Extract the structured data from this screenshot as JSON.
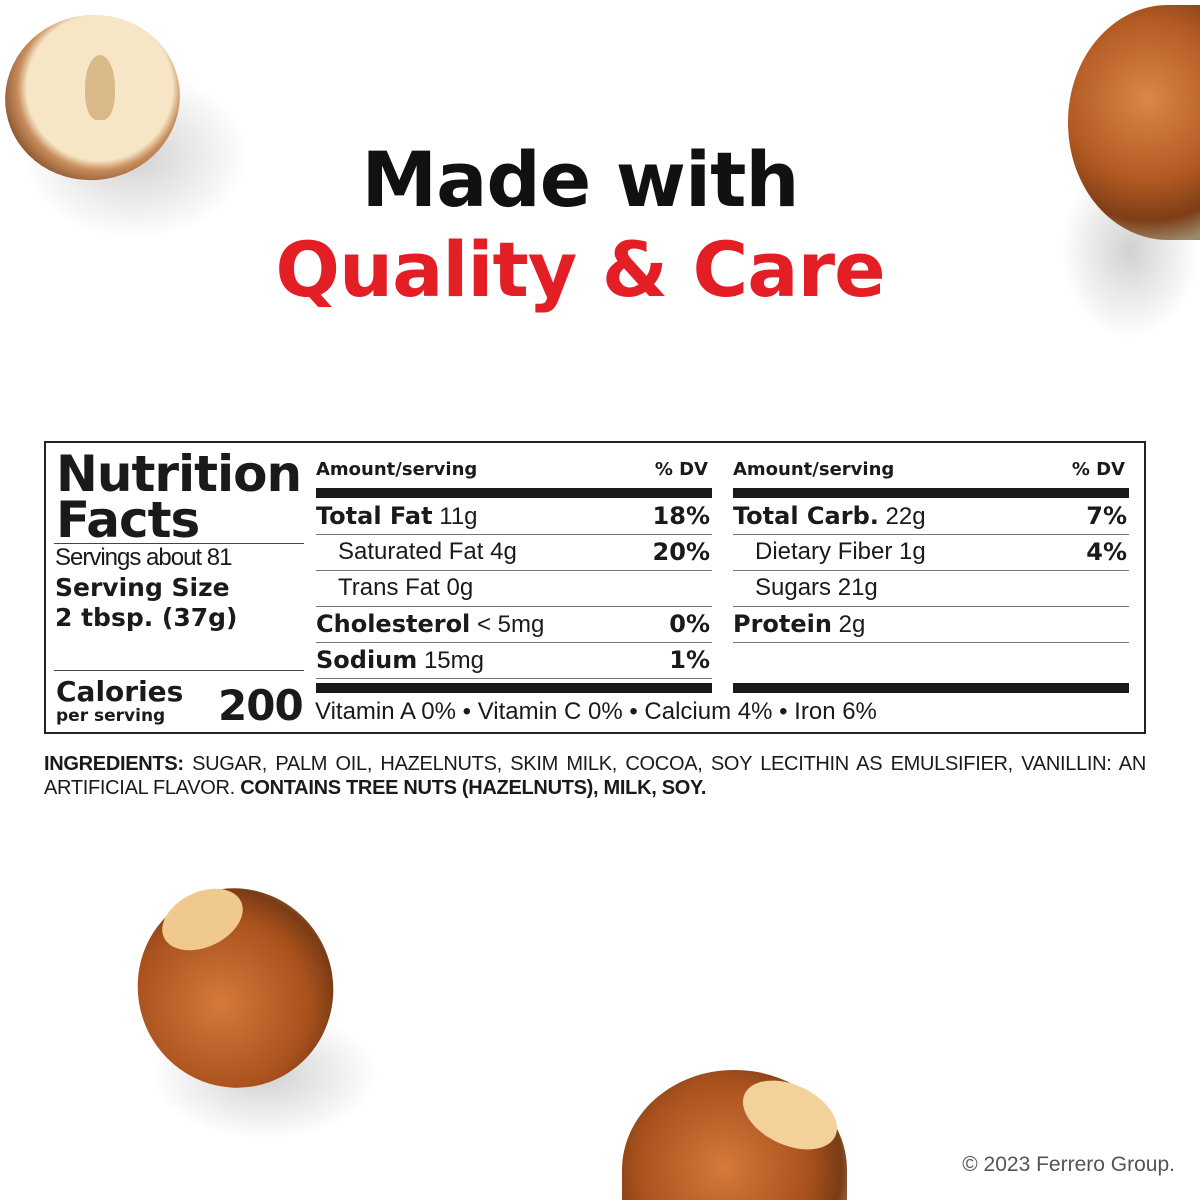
{
  "headline": {
    "line1": "Made with",
    "line2": "Quality & Care",
    "accent_color": "#e31e24"
  },
  "nutrition": {
    "title_line1": "Nutrition",
    "title_line2": "Facts",
    "servings": "Servings about 81",
    "serving_size_label": "Serving Size",
    "serving_size": "2 tbsp. (37g)",
    "calories_label": "Calories",
    "calories_sub": "per serving",
    "calories": "200",
    "col_header_amount": "Amount/serving",
    "col_header_dv": "% DV",
    "left_rows": [
      {
        "name": "Total Fat",
        "amount": "11g",
        "dv": "18%",
        "bold": true
      },
      {
        "name": "Saturated Fat",
        "amount": "4g",
        "dv": "20%",
        "bold": false
      },
      {
        "name": "Trans Fat",
        "amount": "0g",
        "dv": "",
        "bold": false
      },
      {
        "name": "Cholesterol",
        "amount": "< 5mg",
        "dv": "0%",
        "bold": true
      },
      {
        "name": "Sodium",
        "amount": "15mg",
        "dv": "1%",
        "bold": true
      }
    ],
    "right_rows": [
      {
        "name": "Total Carb.",
        "amount": "22g",
        "dv": "7%",
        "bold": true
      },
      {
        "name": "Dietary Fiber",
        "amount": "1g",
        "dv": "4%",
        "bold": false
      },
      {
        "name": "Sugars",
        "amount": "21g",
        "dv": "",
        "bold": false
      },
      {
        "name": "Protein",
        "amount": "2g",
        "dv": "",
        "bold": true
      }
    ],
    "vitamins": "Vitamin A 0% • Vitamin C  0% • Calcium  4% • Iron  6%"
  },
  "ingredients": {
    "label": "INGREDIENTS:",
    "text": " SUGAR, PALM OIL, HAZELNUTS, SKIM MILK, COCOA, SOY LECITHIN AS EMULSIFIER, VANILLIN: AN ARTIFICIAL FLAVOR. ",
    "contains": "CONTAINS TREE NUTS (HAZELNUTS), MILK, SOY."
  },
  "copyright": "© 2023 Ferrero Group."
}
